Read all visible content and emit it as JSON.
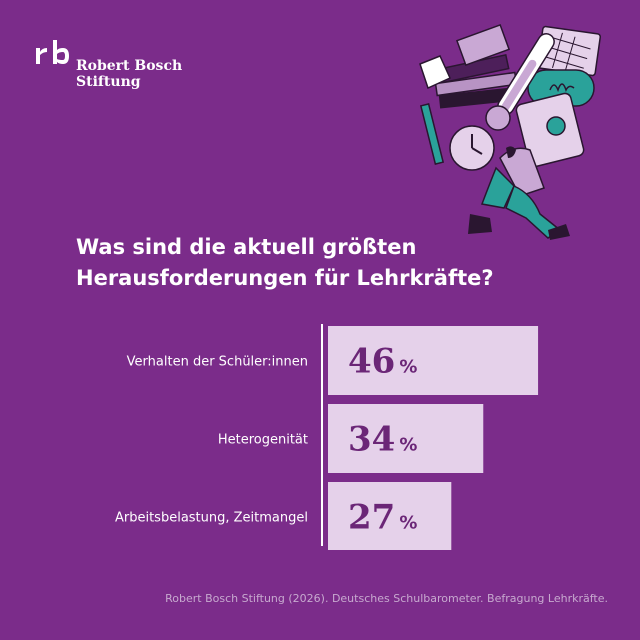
{
  "brand": {
    "name_line1": "Robert Bosch",
    "name_line2": "Stiftung",
    "logo": "rb-logo"
  },
  "headline": {
    "line1": "Was sind die aktuell größten",
    "line2": "Herausforderungen für Lehrkräfte?"
  },
  "illustration": {
    "icon": "stressed-teacher-illustration"
  },
  "colors": {
    "background": "#7b2c8a",
    "bar": "#e5d1ea",
    "value_text": "#6b2677",
    "accent": "#2aa29a"
  },
  "chart_data": {
    "type": "bar",
    "orientation": "horizontal",
    "categories": [
      "Verhalten der Schüler:innen",
      "Heterogenität",
      "Arbeitsbelastung, Zeitmangel"
    ],
    "values": [
      46,
      34,
      27
    ],
    "value_unit": "%",
    "xlim": [
      0,
      60
    ]
  },
  "footer": {
    "source": "Robert Bosch Stiftung (2026). Deutsches Schulbarometer. Befragung Lehrkräfte."
  }
}
